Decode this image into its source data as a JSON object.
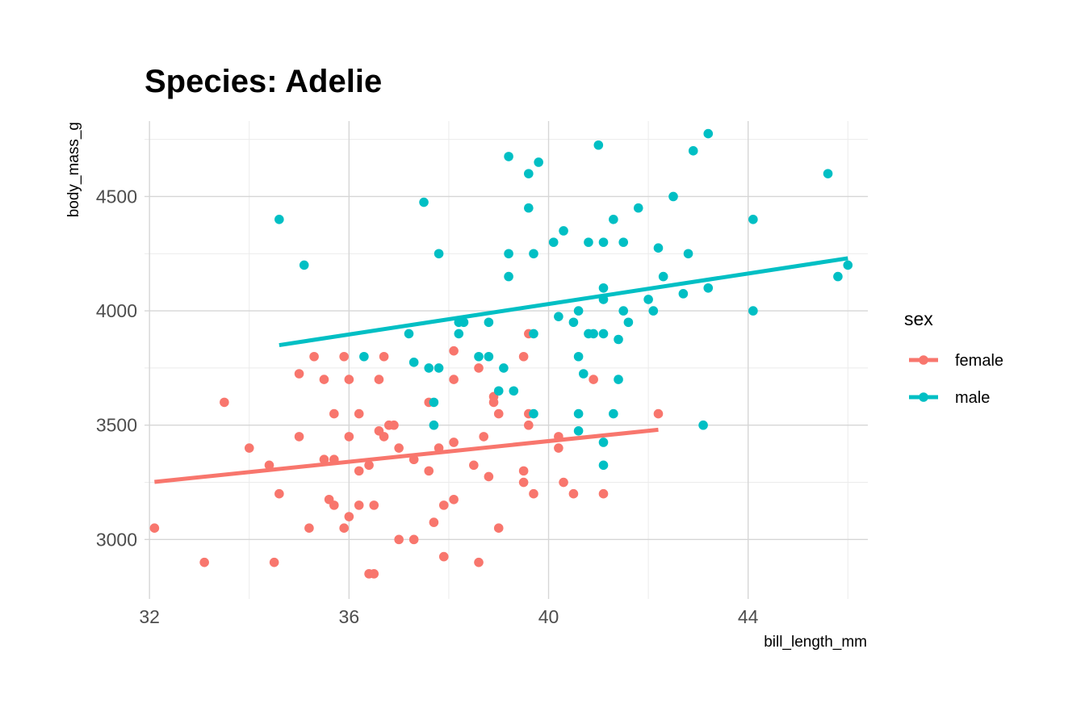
{
  "chart_data": {
    "type": "scatter",
    "title": "Species: Adelie",
    "xlabel": "bill_length_mm",
    "ylabel": "body_mass_g",
    "xlim": [
      31.9,
      46.4
    ],
    "ylim": [
      2740,
      4830
    ],
    "x_ticks": [
      32,
      36,
      40,
      44
    ],
    "y_ticks": [
      3000,
      3500,
      4000,
      4500
    ],
    "x_minor": [
      34,
      38,
      42,
      46
    ],
    "y_minor": [
      3250,
      3750,
      4250,
      4750
    ],
    "grid": true,
    "legend": {
      "title": "sex",
      "position": "right",
      "entries": [
        {
          "label": "female",
          "color": "#F8766D"
        },
        {
          "label": "male",
          "color": "#00BFC4"
        }
      ]
    },
    "series": [
      {
        "name": "female",
        "color": "#F8766D",
        "trend": {
          "x": [
            32.1,
            42.2
          ],
          "y": [
            3252,
            3480
          ]
        },
        "points": [
          [
            32.1,
            3050
          ],
          [
            33.1,
            2900
          ],
          [
            33.5,
            3600
          ],
          [
            34.0,
            3400
          ],
          [
            34.4,
            3325
          ],
          [
            34.5,
            2900
          ],
          [
            34.6,
            3200
          ],
          [
            35.0,
            3725
          ],
          [
            35.0,
            3450
          ],
          [
            35.2,
            3050
          ],
          [
            35.3,
            3800
          ],
          [
            35.5,
            3700
          ],
          [
            35.5,
            3350
          ],
          [
            35.6,
            3175
          ],
          [
            35.7,
            3150
          ],
          [
            35.7,
            3550
          ],
          [
            35.7,
            3350
          ],
          [
            35.9,
            3800
          ],
          [
            35.9,
            3050
          ],
          [
            36.0,
            3700
          ],
          [
            36.0,
            3450
          ],
          [
            36.0,
            3100
          ],
          [
            36.2,
            3550
          ],
          [
            36.2,
            3300
          ],
          [
            36.2,
            3150
          ],
          [
            36.4,
            3325
          ],
          [
            36.4,
            2850
          ],
          [
            36.5,
            2850
          ],
          [
            36.5,
            3150
          ],
          [
            36.6,
            3700
          ],
          [
            36.6,
            3475
          ],
          [
            36.7,
            3450
          ],
          [
            36.7,
            3800
          ],
          [
            36.8,
            3500
          ],
          [
            36.9,
            3500
          ],
          [
            37.0,
            3400
          ],
          [
            37.0,
            3000
          ],
          [
            37.3,
            3350
          ],
          [
            37.3,
            3000
          ],
          [
            37.6,
            3600
          ],
          [
            37.6,
            3300
          ],
          [
            37.7,
            3075
          ],
          [
            37.8,
            3400
          ],
          [
            37.9,
            2925
          ],
          [
            37.9,
            3150
          ],
          [
            38.1,
            3825
          ],
          [
            38.1,
            3700
          ],
          [
            38.1,
            3425
          ],
          [
            38.1,
            3175
          ],
          [
            38.5,
            3325
          ],
          [
            38.6,
            3750
          ],
          [
            38.6,
            2900
          ],
          [
            38.7,
            3450
          ],
          [
            38.8,
            3275
          ],
          [
            38.9,
            3625
          ],
          [
            38.9,
            3600
          ],
          [
            39.0,
            3550
          ],
          [
            39.0,
            3050
          ],
          [
            39.5,
            3800
          ],
          [
            39.5,
            3300
          ],
          [
            39.5,
            3250
          ],
          [
            39.6,
            3900
          ],
          [
            39.6,
            3550
          ],
          [
            39.6,
            3500
          ],
          [
            39.7,
            3200
          ],
          [
            40.2,
            3450
          ],
          [
            40.2,
            3400
          ],
          [
            40.3,
            3250
          ],
          [
            40.5,
            3200
          ],
          [
            40.9,
            3700
          ],
          [
            41.1,
            3200
          ],
          [
            42.2,
            3550
          ]
        ]
      },
      {
        "name": "male",
        "color": "#00BFC4",
        "trend": {
          "x": [
            34.6,
            46.0
          ],
          "y": [
            3850,
            4230
          ]
        },
        "points": [
          [
            34.6,
            4400
          ],
          [
            35.1,
            4200
          ],
          [
            36.3,
            3800
          ],
          [
            37.2,
            3900
          ],
          [
            37.3,
            3775
          ],
          [
            37.5,
            4475
          ],
          [
            37.6,
            3750
          ],
          [
            37.7,
            3600
          ],
          [
            37.7,
            3500
          ],
          [
            37.8,
            4250
          ],
          [
            37.8,
            3750
          ],
          [
            38.2,
            3950
          ],
          [
            38.2,
            3900
          ],
          [
            38.3,
            3950
          ],
          [
            38.6,
            3800
          ],
          [
            38.8,
            3800
          ],
          [
            38.8,
            3950
          ],
          [
            39.0,
            3650
          ],
          [
            39.1,
            3750
          ],
          [
            39.2,
            4675
          ],
          [
            39.2,
            4250
          ],
          [
            39.2,
            4150
          ],
          [
            39.3,
            3650
          ],
          [
            39.6,
            4600
          ],
          [
            39.6,
            4450
          ],
          [
            39.7,
            4250
          ],
          [
            39.7,
            3900
          ],
          [
            39.7,
            3550
          ],
          [
            39.8,
            4650
          ],
          [
            40.1,
            4300
          ],
          [
            40.2,
            3975
          ],
          [
            40.3,
            4350
          ],
          [
            40.5,
            3950
          ],
          [
            40.6,
            4000
          ],
          [
            40.6,
            3800
          ],
          [
            40.6,
            3550
          ],
          [
            40.6,
            3475
          ],
          [
            40.7,
            3725
          ],
          [
            40.8,
            4300
          ],
          [
            40.8,
            3900
          ],
          [
            40.9,
            3900
          ],
          [
            41.0,
            4725
          ],
          [
            41.1,
            4300
          ],
          [
            41.1,
            4100
          ],
          [
            41.1,
            4050
          ],
          [
            41.1,
            3900
          ],
          [
            41.1,
            3425
          ],
          [
            41.1,
            3325
          ],
          [
            41.3,
            4400
          ],
          [
            41.3,
            3550
          ],
          [
            41.4,
            3875
          ],
          [
            41.4,
            3700
          ],
          [
            41.5,
            4300
          ],
          [
            41.5,
            4000
          ],
          [
            41.6,
            3950
          ],
          [
            41.8,
            4450
          ],
          [
            42.0,
            4050
          ],
          [
            42.1,
            4000
          ],
          [
            42.2,
            4275
          ],
          [
            42.3,
            4150
          ],
          [
            42.5,
            4500
          ],
          [
            42.7,
            4075
          ],
          [
            42.8,
            4250
          ],
          [
            42.9,
            4700
          ],
          [
            43.1,
            3500
          ],
          [
            43.2,
            4775
          ],
          [
            43.2,
            4100
          ],
          [
            44.1,
            4400
          ],
          [
            44.1,
            4000
          ],
          [
            45.6,
            4600
          ],
          [
            45.8,
            4150
          ],
          [
            46.0,
            4200
          ]
        ]
      }
    ]
  }
}
